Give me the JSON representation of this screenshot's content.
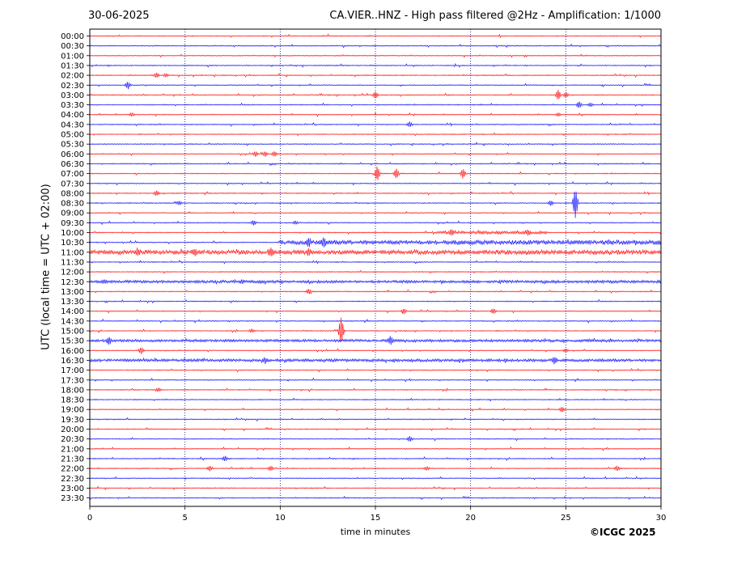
{
  "header": {
    "date": "30-06-2025",
    "title": "CA.VIER..HNZ - High pass filtered @2Hz - Amplification: 1/1000"
  },
  "footer": {
    "copyright": "©ICGC 2025"
  },
  "colors": {
    "trace_a": "#ff0000",
    "trace_b": "#0000ff",
    "grid": "#00007f",
    "frame": "#000000"
  },
  "chart_data": {
    "type": "line",
    "title": "CA.VIER..HNZ - High pass filtered @2Hz - Amplification: 1/1000",
    "xlabel": "time in minutes",
    "ylabel": "UTC (local time = UTC + 02:00)",
    "xlim": [
      0,
      30
    ],
    "xticks": [
      0,
      5,
      10,
      15,
      20,
      25,
      30
    ],
    "vertical_gridlines": [
      5,
      10,
      15,
      20,
      25
    ],
    "grid": "dotted vertical",
    "row_colors_alternate": [
      "red",
      "blue"
    ],
    "rows": [
      "00:00",
      "00:30",
      "01:00",
      "01:30",
      "02:00",
      "02:30",
      "03:00",
      "03:30",
      "04:00",
      "04:30",
      "05:00",
      "05:30",
      "06:00",
      "06:30",
      "07:00",
      "07:30",
      "08:00",
      "08:30",
      "09:00",
      "09:30",
      "10:00",
      "10:30",
      "11:00",
      "11:30",
      "12:00",
      "12:30",
      "13:00",
      "13:30",
      "14:00",
      "14:30",
      "15:00",
      "15:30",
      "16:00",
      "16:30",
      "17:00",
      "17:30",
      "18:00",
      "18:30",
      "19:00",
      "19:30",
      "20:00",
      "20:30",
      "21:00",
      "21:30",
      "22:00",
      "22:30",
      "23:00",
      "23:30"
    ],
    "events": [
      {
        "row": 4,
        "t": 3.5,
        "amp": 3
      },
      {
        "row": 4,
        "t": 4.0,
        "amp": 2
      },
      {
        "row": 5,
        "t": 2.0,
        "amp": 4
      },
      {
        "row": 6,
        "t": 15.0,
        "amp": 4
      },
      {
        "row": 6,
        "t": 24.6,
        "amp": 6
      },
      {
        "row": 6,
        "t": 25.0,
        "amp": 3
      },
      {
        "row": 7,
        "t": 25.7,
        "amp": 4
      },
      {
        "row": 7,
        "t": 26.3,
        "amp": 2
      },
      {
        "row": 8,
        "t": 2.2,
        "amp": 2
      },
      {
        "row": 8,
        "t": 24.6,
        "amp": 2
      },
      {
        "row": 9,
        "t": 16.8,
        "amp": 3
      },
      {
        "row": 12,
        "t": 8.7,
        "amp": 3
      },
      {
        "row": 12,
        "t": 9.2,
        "amp": 3
      },
      {
        "row": 12,
        "t": 9.7,
        "amp": 3
      },
      {
        "row": 14,
        "t": 15.1,
        "amp": 9
      },
      {
        "row": 14,
        "t": 16.1,
        "amp": 6
      },
      {
        "row": 14,
        "t": 19.6,
        "amp": 6
      },
      {
        "row": 16,
        "t": 3.5,
        "amp": 3
      },
      {
        "row": 17,
        "t": 25.5,
        "amp": 18
      },
      {
        "row": 17,
        "t": 24.2,
        "amp": 3
      },
      {
        "row": 17,
        "t": 4.7,
        "amp": 2
      },
      {
        "row": 19,
        "t": 8.6,
        "amp": 3
      },
      {
        "row": 19,
        "t": 10.8,
        "amp": 2
      },
      {
        "row": 20,
        "t": 19.0,
        "amp": 3
      },
      {
        "row": 20,
        "t": 23.0,
        "amp": 2
      },
      {
        "row": 21,
        "t": 11.5,
        "amp": 4
      },
      {
        "row": 21,
        "t": 12.3,
        "amp": 4
      },
      {
        "row": 22,
        "t": 2.5,
        "amp": 3
      },
      {
        "row": 22,
        "t": 5.5,
        "amp": 3
      },
      {
        "row": 22,
        "t": 9.5,
        "amp": 4
      },
      {
        "row": 22,
        "t": 11.5,
        "amp": 3
      },
      {
        "row": 25,
        "t": 0.8,
        "amp": 2
      },
      {
        "row": 25,
        "t": 8.0,
        "amp": 2
      },
      {
        "row": 26,
        "t": 11.5,
        "amp": 3
      },
      {
        "row": 28,
        "t": 16.5,
        "amp": 3
      },
      {
        "row": 28,
        "t": 21.2,
        "amp": 3
      },
      {
        "row": 30,
        "t": 8.5,
        "amp": 2
      },
      {
        "row": 30,
        "t": 13.2,
        "amp": 16
      },
      {
        "row": 31,
        "t": 1.0,
        "amp": 4
      },
      {
        "row": 31,
        "t": 15.8,
        "amp": 5
      },
      {
        "row": 32,
        "t": 2.7,
        "amp": 4
      },
      {
        "row": 32,
        "t": 25.0,
        "amp": 2
      },
      {
        "row": 33,
        "t": 9.2,
        "amp": 3
      },
      {
        "row": 33,
        "t": 24.4,
        "amp": 4
      },
      {
        "row": 36,
        "t": 3.6,
        "amp": 2
      },
      {
        "row": 38,
        "t": 24.8,
        "amp": 3
      },
      {
        "row": 41,
        "t": 16.8,
        "amp": 3
      },
      {
        "row": 43,
        "t": 7.1,
        "amp": 3
      },
      {
        "row": 44,
        "t": 9.5,
        "amp": 3
      },
      {
        "row": 44,
        "t": 27.7,
        "amp": 3
      },
      {
        "row": 44,
        "t": 6.3,
        "amp": 3
      },
      {
        "row": 44,
        "t": 17.7,
        "amp": 2
      }
    ],
    "noisy_rows": [
      {
        "row": 21,
        "from": 10,
        "to": 30,
        "amp": 2.4
      },
      {
        "row": 22,
        "from": 0,
        "to": 30,
        "amp": 2.4
      },
      {
        "row": 20,
        "from": 18,
        "to": 24,
        "amp": 1.5
      },
      {
        "row": 25,
        "from": 0,
        "to": 30,
        "amp": 1.3
      },
      {
        "row": 33,
        "from": 0,
        "to": 30,
        "amp": 1.3
      },
      {
        "row": 31,
        "from": 0,
        "to": 30,
        "amp": 1.2
      }
    ]
  }
}
